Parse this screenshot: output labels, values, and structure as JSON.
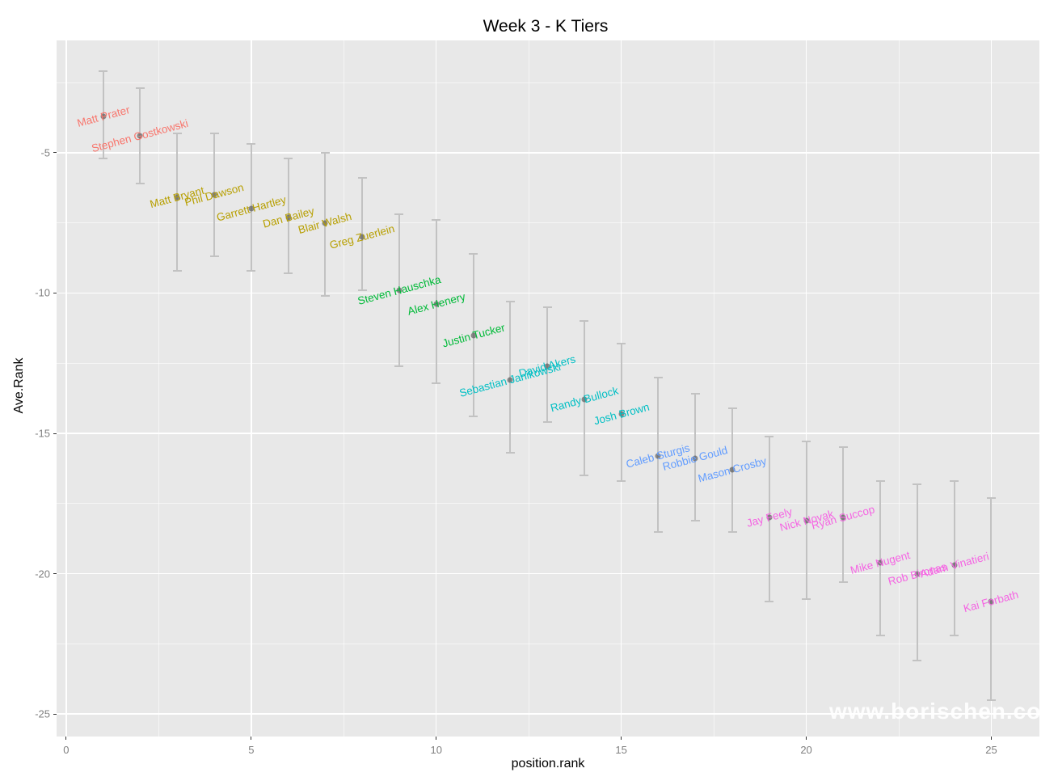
{
  "chart_data": {
    "type": "scatter",
    "title": "Week 3 - K Tiers",
    "xlabel": "position.rank",
    "ylabel": "Ave.Rank",
    "watermark": "www.borischen.co",
    "legend": "none",
    "grid": "white major and minor gridlines on gray panel",
    "xlim": [
      -0.26,
      26.3
    ],
    "ylim": [
      -25.8,
      -1.0
    ],
    "x_ticks": [
      0,
      5,
      10,
      15,
      20,
      25
    ],
    "x_minor_gridlines": [
      2.5,
      7.5,
      12.5,
      17.5,
      22.5
    ],
    "y_ticks": [
      -5,
      -10,
      -15,
      -20,
      -25
    ],
    "y_minor_gridlines": [
      -2.5,
      -7.5,
      -12.5,
      -17.5,
      -22.5
    ],
    "colors": {
      "panel_background": "#E8E8E8",
      "gridline": "#FFFFFF",
      "errorbar": "#C2C2C2",
      "point": "#464646",
      "tick_text": "#7F7F7F",
      "tier1": "#F8766D",
      "tier2": "#B79F00",
      "tier3": "#00BA38",
      "tier4": "#00BFC4",
      "tier5": "#619CFF",
      "tier6": "#F564E3"
    },
    "series": [
      {
        "name": "Tier 1",
        "color": "#F8766D",
        "points": [
          {
            "x": 1,
            "label": "Matt Prater",
            "y": -3.7,
            "ymax": -2.1,
            "ymin": -5.2
          },
          {
            "x": 2,
            "label": "Stephen Gostkowski",
            "y": -4.4,
            "ymax": -2.7,
            "ymin": -6.1
          }
        ]
      },
      {
        "name": "Tier 2",
        "color": "#B79F00",
        "points": [
          {
            "x": 3,
            "label": "Matt Bryant",
            "y": -6.6,
            "ymax": -4.3,
            "ymin": -9.2
          },
          {
            "x": 4,
            "label": "Phil Dawson",
            "y": -6.5,
            "ymax": -4.3,
            "ymin": -8.7
          },
          {
            "x": 5,
            "label": "Garrett Hartley",
            "y": -7.0,
            "ymax": -4.7,
            "ymin": -9.2
          },
          {
            "x": 6,
            "label": "Dan Bailey",
            "y": -7.3,
            "ymax": -5.2,
            "ymin": -9.3
          },
          {
            "x": 7,
            "label": "Blair Walsh",
            "y": -7.5,
            "ymax": -5.0,
            "ymin": -10.1
          },
          {
            "x": 8,
            "label": "Greg Zuerlein",
            "y": -8.0,
            "ymax": -5.9,
            "ymin": -9.9
          }
        ]
      },
      {
        "name": "Tier 3",
        "color": "#00BA38",
        "points": [
          {
            "x": 9,
            "label": "Steven Hauschka",
            "y": -9.9,
            "ymax": -7.2,
            "ymin": -12.6
          },
          {
            "x": 10,
            "label": "Alex Henery",
            "y": -10.4,
            "ymax": -7.4,
            "ymin": -13.2
          },
          {
            "x": 11,
            "label": "Justin Tucker",
            "y": -11.5,
            "ymax": -8.6,
            "ymin": -14.4
          }
        ]
      },
      {
        "name": "Tier 4",
        "color": "#00BFC4",
        "points": [
          {
            "x": 12,
            "label": "Sebastian Janikowski",
            "y": -13.1,
            "ymax": -10.3,
            "ymin": -15.7
          },
          {
            "x": 13,
            "label": "David Akers",
            "y": -12.6,
            "ymax": -10.5,
            "ymin": -14.6
          },
          {
            "x": 14,
            "label": "Randy Bullock",
            "y": -13.8,
            "ymax": -11.0,
            "ymin": -16.5
          },
          {
            "x": 15,
            "label": "Josh Brown",
            "y": -14.3,
            "ymax": -11.8,
            "ymin": -16.7
          }
        ]
      },
      {
        "name": "Tier 5",
        "color": "#619CFF",
        "points": [
          {
            "x": 16,
            "label": "Caleb Sturgis",
            "y": -15.8,
            "ymax": -13.0,
            "ymin": -18.5
          },
          {
            "x": 17,
            "label": "Robbie Gould",
            "y": -15.9,
            "ymax": -13.6,
            "ymin": -18.1
          },
          {
            "x": 18,
            "label": "Mason Crosby",
            "y": -16.3,
            "ymax": -14.1,
            "ymin": -18.5
          }
        ]
      },
      {
        "name": "Tier 6",
        "color": "#F564E3",
        "points": [
          {
            "x": 19,
            "label": "Jay Feely",
            "y": -18.0,
            "ymax": -15.1,
            "ymin": -21.0
          },
          {
            "x": 20,
            "label": "Nick Novak",
            "y": -18.1,
            "ymax": -15.3,
            "ymin": -20.9
          },
          {
            "x": 21,
            "label": "Ryan Succop",
            "y": -18.0,
            "ymax": -15.5,
            "ymin": -20.3
          },
          {
            "x": 22,
            "label": "Mike Nugent",
            "y": -19.6,
            "ymax": -16.7,
            "ymin": -22.2
          },
          {
            "x": 23,
            "label": "Rob Bironas",
            "y": -20.0,
            "ymax": -16.8,
            "ymin": -23.1
          },
          {
            "x": 24,
            "label": "Adam Vinatieri",
            "y": -19.7,
            "ymax": -16.7,
            "ymin": -22.2
          },
          {
            "x": 25,
            "label": "Kai Forbath",
            "y": -21.0,
            "ymax": -17.3,
            "ymin": -24.5
          }
        ]
      }
    ]
  }
}
